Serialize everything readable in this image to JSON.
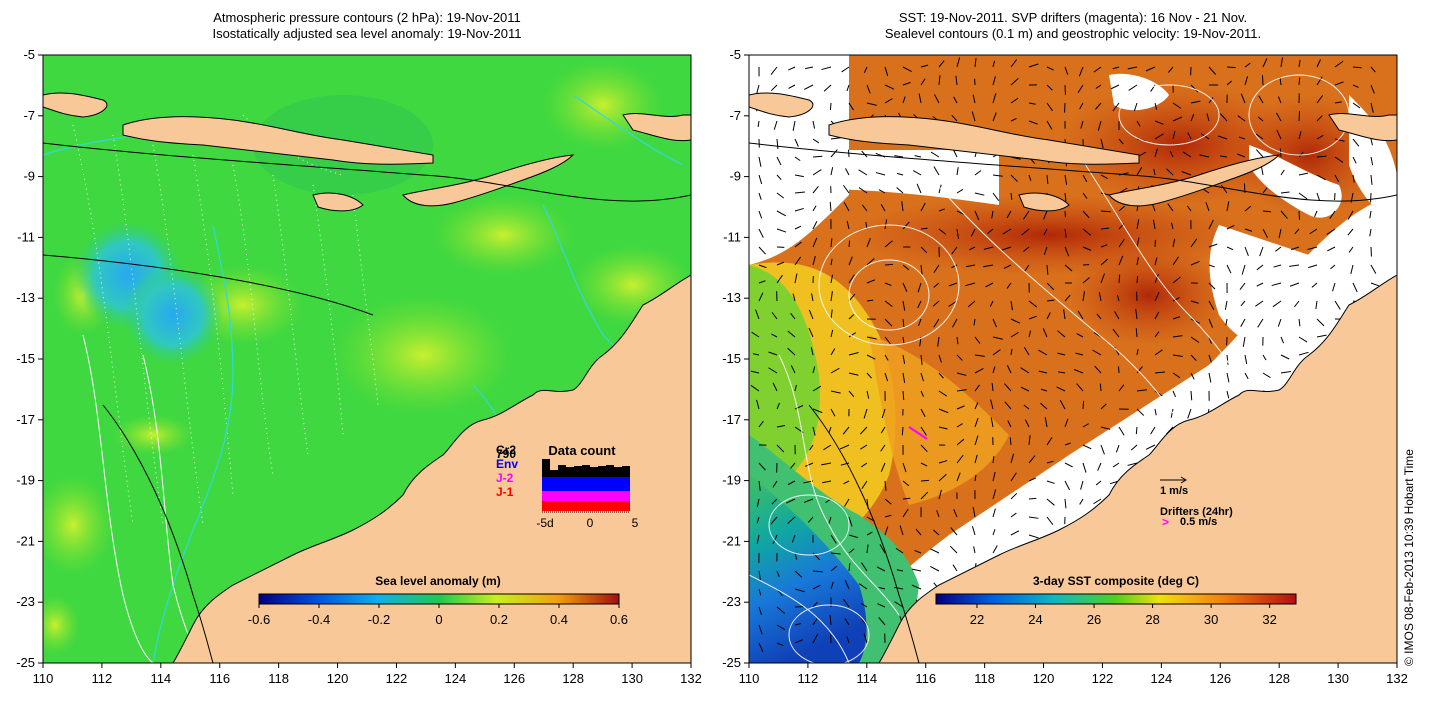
{
  "left_panel": {
    "title_line1": "Atmospheric pressure contours (2 hPa): 19-Nov-2011",
    "title_line2": "Isostatically adjusted sea level anomaly: 19-Nov-2011",
    "x_ticks": [
      "110",
      "112",
      "114",
      "116",
      "118",
      "120",
      "122",
      "124",
      "126",
      "128",
      "130",
      "132"
    ],
    "y_ticks": [
      "-5",
      "-7",
      "-9",
      "-11",
      "-13",
      "-15",
      "-17",
      "-19",
      "-21",
      "-23",
      "-25"
    ],
    "colorbar": {
      "label": "Sea level anomaly (m)",
      "ticks": [
        "-0.6",
        "-0.4",
        "-0.2",
        "0",
        "0.2",
        "0.4",
        "0.6"
      ],
      "range": [
        -0.6,
        0.6
      ]
    },
    "data_count": {
      "title": "Data count",
      "legend": [
        {
          "label": "Cr2",
          "color": "#000000"
        },
        {
          "label": "Env",
          "color": "#0000ff"
        },
        {
          "label": "J-2",
          "color": "#ff00ff"
        },
        {
          "label": "J-1",
          "color": "#ff0000"
        }
      ],
      "total": "790",
      "x_ticks": [
        "-5d",
        "0",
        "5"
      ]
    }
  },
  "right_panel": {
    "title_line1": "SST: 19-Nov-2011. SVP drifters (magenta): 16 Nov - 21 Nov.",
    "title_line2": "Sealevel contours (0.1 m) and geostrophic velocity: 19-Nov-2011.",
    "x_ticks": [
      "110",
      "112",
      "114",
      "116",
      "118",
      "120",
      "122",
      "124",
      "126",
      "128",
      "130",
      "132"
    ],
    "y_ticks": [
      "-5",
      "-7",
      "-9",
      "-11",
      "-13",
      "-15",
      "-17",
      "-19",
      "-21",
      "-23",
      "-25"
    ],
    "colorbar": {
      "label": "3-day SST composite (deg C)",
      "ticks": [
        "22",
        "24",
        "26",
        "28",
        "30",
        "32"
      ],
      "range": [
        20.6,
        32.9
      ]
    },
    "legend": {
      "velocity_label": "1 m/s",
      "drifters_label": "Drifters (24hr)",
      "drifter_speed_label": "0.5 m/s",
      "drifter_symbol": ">"
    }
  },
  "credit": "© IMOS 08-Feb-2013 10:39 Hobart Time",
  "colors": {
    "land": "#f8c898",
    "sla_ocean": "#40d840",
    "sst_warm": "#d8701c"
  }
}
